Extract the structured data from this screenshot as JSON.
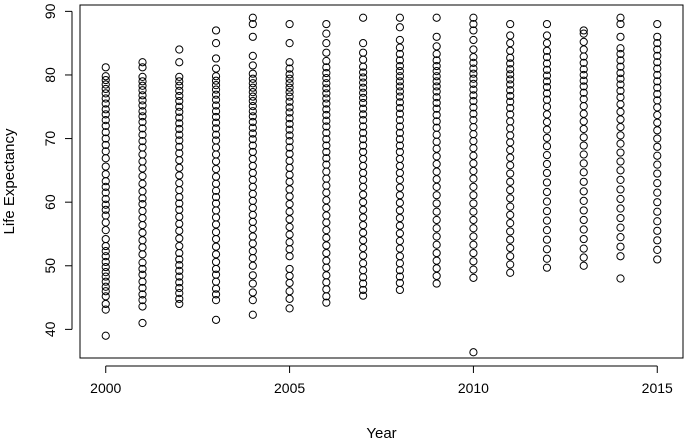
{
  "chart_data": {
    "type": "scatter",
    "xlabel": "Year",
    "ylabel": "Life Expectancy",
    "x_ticks": [
      2000,
      2005,
      2010,
      2015
    ],
    "y_ticks": [
      40,
      50,
      60,
      70,
      80,
      90
    ],
    "xlim": [
      1999.3,
      2015.7
    ],
    "ylim": [
      35.5,
      91.0
    ],
    "grid": false,
    "legend": "none",
    "marker": "open-circle",
    "colors": {
      "marker": "#000000",
      "axes": "#000000",
      "background": "#ffffff"
    },
    "series": [
      {
        "x": 2000,
        "y": [
          39.0,
          43.1,
          44.0,
          45.2,
          46.0,
          46.7,
          47.5,
          48.3,
          49.0,
          49.8,
          50.6,
          51.5,
          52.3,
          53.1,
          54.2,
          55.6,
          56.8,
          57.9,
          58.8,
          59.6,
          60.5,
          61.5,
          62.4,
          63.3,
          64.4,
          65.6,
          66.9,
          68.0,
          69.0,
          70.0,
          71.0,
          72.0,
          72.9,
          73.8,
          74.6,
          75.5,
          76.3,
          77.1,
          77.8,
          78.5,
          79.2,
          79.8,
          81.2
        ]
      },
      {
        "x": 2001,
        "y": [
          41.0,
          43.6,
          44.6,
          45.5,
          46.5,
          47.5,
          48.6,
          49.5,
          50.5,
          51.8,
          52.9,
          54.0,
          55.2,
          56.4,
          57.5,
          58.6,
          59.7,
          60.6,
          61.7,
          62.9,
          64.1,
          65.3,
          66.4,
          67.5,
          68.6,
          69.6,
          70.6,
          71.6,
          72.6,
          73.5,
          74.3,
          75.2,
          76.0,
          76.8,
          77.6,
          78.3,
          79.0,
          79.7,
          81.2,
          82.0
        ]
      },
      {
        "x": 2002,
        "y": [
          44.0,
          44.8,
          45.7,
          46.5,
          47.4,
          48.3,
          49.2,
          50.1,
          51.0,
          52.0,
          53.1,
          54.3,
          55.5,
          56.6,
          57.7,
          58.8,
          59.8,
          60.8,
          61.9,
          63.0,
          64.2,
          65.4,
          66.6,
          67.7,
          68.7,
          69.7,
          70.6,
          71.5,
          72.4,
          73.3,
          74.2,
          75.0,
          75.9,
          76.7,
          77.5,
          78.3,
          79.0,
          79.7,
          82.0,
          84.0
        ]
      },
      {
        "x": 2003,
        "y": [
          41.5,
          44.6,
          45.5,
          46.4,
          47.5,
          48.6,
          49.5,
          50.6,
          51.8,
          53.0,
          54.2,
          55.3,
          56.5,
          57.6,
          58.7,
          59.8,
          60.8,
          61.8,
          62.9,
          64.0,
          65.2,
          66.4,
          67.5,
          68.6,
          69.7,
          70.6,
          71.6,
          72.5,
          73.4,
          74.3,
          75.2,
          76.1,
          76.9,
          77.7,
          78.4,
          79.1,
          79.8,
          81.0,
          82.6,
          85.0,
          87.0
        ]
      },
      {
        "x": 2004,
        "y": [
          42.3,
          44.6,
          45.8,
          47.2,
          48.5,
          50.0,
          51.2,
          52.3,
          53.5,
          54.6,
          55.8,
          56.9,
          58.0,
          59.1,
          60.2,
          61.3,
          62.4,
          63.5,
          64.6,
          65.7,
          66.8,
          67.9,
          68.9,
          69.9,
          70.8,
          71.7,
          72.6,
          73.5,
          74.3,
          75.1,
          75.9,
          76.6,
          77.3,
          78.0,
          78.7,
          79.4,
          80.2,
          81.5,
          83.0,
          86.0,
          88.0,
          89.0
        ]
      },
      {
        "x": 2005,
        "y": [
          43.3,
          44.8,
          46.0,
          47.3,
          48.4,
          49.5,
          51.5,
          52.6,
          53.7,
          54.9,
          56.1,
          57.3,
          58.5,
          59.7,
          60.9,
          62.0,
          63.2,
          64.3,
          65.4,
          66.5,
          67.6,
          68.6,
          69.6,
          70.5,
          71.4,
          72.3,
          73.2,
          74.1,
          74.9,
          75.8,
          76.6,
          77.3,
          78.0,
          78.7,
          79.4,
          80.1,
          81.0,
          82.0,
          85.0,
          88.0
        ]
      },
      {
        "x": 2006,
        "y": [
          44.2,
          45.2,
          46.3,
          47.4,
          48.5,
          49.7,
          50.8,
          52.0,
          53.2,
          54.4,
          55.6,
          56.8,
          57.9,
          59.1,
          60.3,
          61.5,
          62.6,
          63.7,
          64.8,
          65.9,
          66.9,
          67.9,
          68.9,
          69.9,
          70.9,
          71.9,
          72.8,
          73.7,
          74.6,
          75.5,
          76.3,
          77.1,
          77.9,
          78.7,
          79.5,
          80.3,
          81.2,
          82.2,
          83.5,
          85.0,
          86.5,
          88.0
        ]
      },
      {
        "x": 2007,
        "y": [
          45.3,
          46.2,
          47.2,
          48.2,
          49.3,
          50.4,
          51.6,
          52.8,
          54.0,
          55.2,
          56.4,
          57.6,
          58.8,
          60.0,
          61.2,
          62.4,
          63.5,
          64.6,
          65.7,
          66.8,
          67.9,
          68.9,
          69.9,
          70.9,
          71.9,
          72.9,
          73.8,
          74.7,
          75.6,
          76.4,
          77.2,
          78.0,
          78.8,
          79.6,
          80.4,
          81.3,
          82.4,
          83.5,
          85.0,
          89.0
        ]
      },
      {
        "x": 2008,
        "y": [
          46.2,
          47.3,
          48.3,
          49.3,
          50.4,
          51.5,
          52.7,
          53.9,
          55.1,
          56.3,
          57.5,
          58.7,
          59.9,
          61.1,
          62.3,
          63.5,
          64.6,
          65.7,
          66.8,
          67.9,
          68.9,
          69.9,
          70.9,
          71.9,
          72.9,
          73.9,
          74.8,
          75.7,
          76.6,
          77.4,
          78.2,
          79.0,
          79.8,
          80.6,
          81.4,
          82.3,
          83.3,
          84.3,
          85.5,
          87.5,
          89.0
        ]
      },
      {
        "x": 2009,
        "y": [
          47.2,
          48.4,
          49.6,
          50.8,
          52.0,
          53.3,
          54.6,
          55.9,
          57.2,
          58.5,
          59.8,
          61.1,
          62.4,
          63.6,
          64.8,
          66.0,
          67.2,
          68.4,
          69.5,
          70.6,
          71.7,
          72.7,
          73.7,
          74.7,
          75.6,
          76.5,
          77.4,
          78.2,
          79.0,
          79.8,
          80.6,
          81.4,
          82.3,
          83.3,
          84.5,
          86.0,
          89.0
        ]
      },
      {
        "x": 2010,
        "y": [
          36.4,
          48.1,
          49.4,
          50.7,
          52.0,
          53.3,
          54.6,
          55.9,
          57.2,
          58.5,
          59.8,
          61.1,
          62.4,
          63.7,
          64.9,
          66.1,
          67.3,
          68.5,
          69.6,
          70.7,
          71.8,
          72.9,
          73.9,
          74.9,
          75.9,
          76.8,
          77.7,
          78.6,
          79.4,
          80.2,
          81.0,
          81.9,
          82.8,
          84.0,
          85.5,
          87.0,
          88.0,
          89.0
        ]
      },
      {
        "x": 2011,
        "y": [
          48.9,
          50.2,
          51.5,
          52.8,
          54.1,
          55.4,
          56.7,
          58.0,
          59.3,
          60.6,
          61.9,
          63.2,
          64.5,
          65.8,
          67.0,
          68.2,
          69.4,
          70.5,
          71.6,
          72.7,
          73.8,
          74.8,
          75.8,
          76.7,
          77.6,
          78.5,
          79.3,
          80.1,
          80.9,
          81.8,
          82.7,
          83.8,
          85.0,
          86.2,
          88.0
        ]
      },
      {
        "x": 2012,
        "y": [
          49.7,
          51.1,
          52.6,
          54.1,
          55.6,
          57.1,
          58.6,
          60.1,
          61.6,
          63.1,
          64.6,
          66.0,
          67.4,
          68.8,
          70.1,
          71.4,
          72.6,
          73.8,
          75.0,
          76.1,
          77.1,
          78.1,
          79.0,
          79.9,
          80.8,
          81.8,
          82.8,
          83.8,
          85.0,
          86.2,
          88.0
        ]
      },
      {
        "x": 2013,
        "y": [
          50.0,
          51.3,
          52.7,
          54.2,
          55.7,
          57.2,
          58.7,
          60.2,
          61.7,
          63.2,
          64.7,
          66.1,
          67.5,
          68.9,
          70.2,
          71.5,
          72.7,
          73.9,
          75.1,
          76.2,
          77.2,
          78.2,
          79.1,
          80.0,
          80.9,
          81.9,
          82.9,
          84.0,
          85.2,
          86.5,
          87.0
        ]
      },
      {
        "x": 2014,
        "y": [
          48.0,
          51.5,
          53.0,
          54.5,
          56.0,
          57.5,
          59.0,
          60.5,
          62.0,
          63.5,
          65.0,
          66.4,
          67.8,
          69.2,
          70.5,
          71.8,
          73.0,
          74.2,
          75.4,
          76.5,
          77.5,
          78.5,
          79.4,
          80.3,
          81.3,
          82.3,
          83.3,
          84.2,
          86.0,
          88.0,
          89.0
        ]
      },
      {
        "x": 2015,
        "y": [
          51.0,
          52.5,
          54.0,
          55.5,
          57.0,
          58.5,
          60.0,
          61.5,
          63.0,
          64.5,
          65.9,
          67.3,
          68.7,
          70.0,
          71.3,
          72.5,
          73.7,
          74.9,
          76.0,
          77.0,
          78.0,
          79.0,
          80.0,
          81.0,
          82.0,
          83.0,
          84.0,
          85.0,
          86.0,
          88.0
        ]
      }
    ]
  }
}
